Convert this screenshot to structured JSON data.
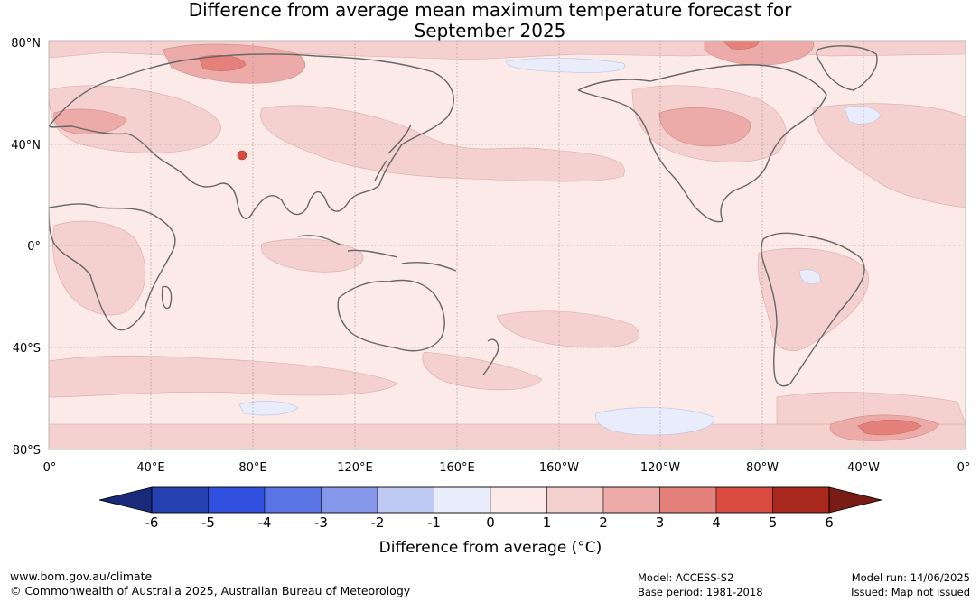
{
  "title": {
    "line1": "Difference from average mean maximum temperature forecast for",
    "line2": "September 2025"
  },
  "map": {
    "lat_labels": [
      "80°N",
      "40°N",
      "0°",
      "40°S",
      "80°S"
    ],
    "lon_labels": [
      "0°",
      "40°E",
      "80°E",
      "120°E",
      "160°E",
      "160°W",
      "120°W",
      "80°W",
      "40°W",
      "0°"
    ],
    "ocean_fill": "#fbeae8",
    "coastline_color": "#666666"
  },
  "colorbar": {
    "ticks": [
      "-6",
      "-5",
      "-4",
      "-3",
      "-2",
      "-1",
      "0",
      "1",
      "2",
      "3",
      "4",
      "5",
      "6"
    ],
    "colors": [
      "#2540b0",
      "#3150e0",
      "#5a74e6",
      "#8797ea",
      "#bfc8f2",
      "#e9ecfb",
      "#fbeae8",
      "#f4d1cf",
      "#ecaba8",
      "#e4817b",
      "#d94b41",
      "#a8281e"
    ],
    "low_extend_color": "#1a2a7a",
    "high_extend_color": "#7a1c16",
    "label": "Difference from average (°C)"
  },
  "footer": {
    "website": "www.bom.gov.au/climate",
    "copyright": "© Commonwealth of Australia 2025, Australian Bureau of Meteorology",
    "model": "Model: ACCESS-S2",
    "base_period": "Base period: 1981-2018",
    "model_run": "Model run: 14/06/2025",
    "issued": "Issued: Map not issued"
  }
}
